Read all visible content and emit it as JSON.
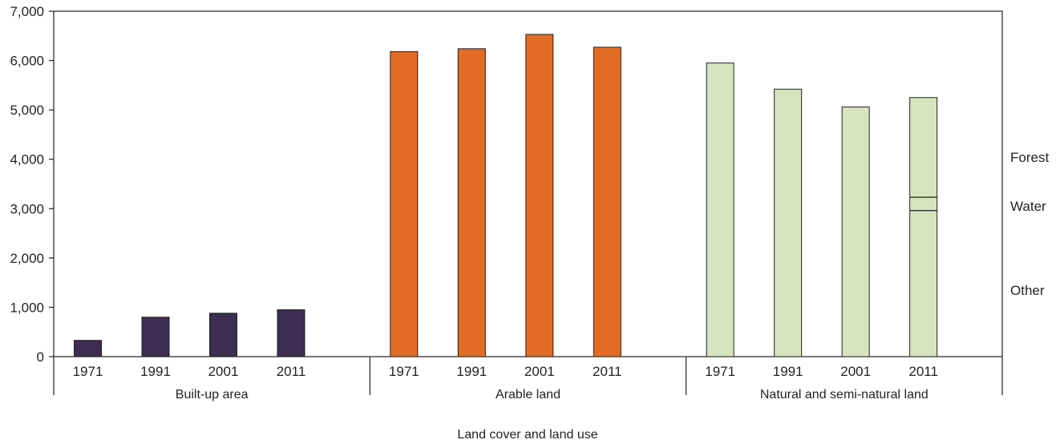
{
  "chart_data": {
    "type": "bar",
    "xlabel": "Land cover and land use",
    "ylabel": "",
    "ylim": [
      0,
      7000
    ],
    "yticks": [
      0,
      1000,
      2000,
      3000,
      4000,
      5000,
      6000,
      7000
    ],
    "ytick_labels": [
      "0",
      "1,000",
      "2,000",
      "3,000",
      "4,000",
      "5,000",
      "6,000",
      "7,000"
    ],
    "grid": false,
    "years": [
      "1971",
      "1991",
      "2001",
      "2011"
    ],
    "groups": [
      {
        "name": "Built-up area",
        "color": "#3d2d50",
        "values": [
          330,
          800,
          880,
          950
        ]
      },
      {
        "name": "Arable land",
        "color": "#e36c25",
        "values": [
          6180,
          6240,
          6530,
          6270
        ]
      },
      {
        "name": "Natural and semi-natural land",
        "color": "#d7e4bd",
        "values": [
          5950,
          5420,
          5060,
          5250
        ]
      }
    ],
    "segmented_bar": {
      "group": "Natural and semi-natural land",
      "year": "2011",
      "segments": [
        {
          "name": "Other",
          "from": 0,
          "to": 2960
        },
        {
          "name": "Water",
          "from": 2960,
          "to": 3230
        },
        {
          "name": "Forest",
          "from": 3230,
          "to": 5250
        }
      ]
    },
    "side_labels": [
      "Forest",
      "Water",
      "Other"
    ]
  }
}
